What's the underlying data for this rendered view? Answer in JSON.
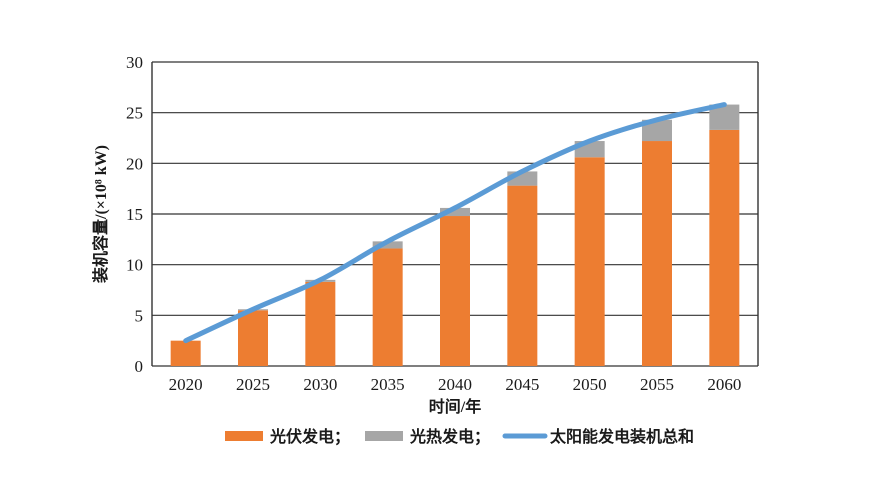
{
  "chart_data": {
    "type": "bar",
    "stacked": true,
    "title": "",
    "xlabel": "时间/年",
    "ylabel": "装机容量/(×10⁸ kW)",
    "categories": [
      "2020",
      "2025",
      "2030",
      "2035",
      "2040",
      "2045",
      "2050",
      "2055",
      "2060"
    ],
    "series": [
      {
        "name": "光伏发电",
        "type": "bar",
        "color": "#ED7D31",
        "values": [
          2.5,
          5.5,
          8.3,
          11.6,
          14.8,
          17.8,
          20.6,
          22.2,
          23.3
        ]
      },
      {
        "name": "光热发电",
        "type": "bar",
        "color": "#A6A6A6",
        "values": [
          0,
          0.1,
          0.2,
          0.7,
          0.8,
          1.4,
          1.6,
          2.1,
          2.5
        ]
      },
      {
        "name": "太阳能发电装机总和",
        "type": "line",
        "color": "#5B9BD5",
        "values": [
          2.5,
          5.6,
          8.5,
          12.3,
          15.6,
          19.2,
          22.2,
          24.3,
          25.8
        ]
      }
    ],
    "ylim": [
      0,
      30
    ],
    "ytick_step": 5,
    "y_ticks": [
      "0",
      "5",
      "10",
      "15",
      "20",
      "25",
      "30"
    ],
    "grid": true,
    "legend_position": "bottom"
  },
  "legend": {
    "items": [
      {
        "label": "光伏发电；",
        "color": "#ED7D31",
        "marker": "rect"
      },
      {
        "label": "光热发电；",
        "color": "#A6A6A6",
        "marker": "rect"
      },
      {
        "label": "太阳能发电装机总和",
        "color": "#5B9BD5",
        "marker": "line"
      }
    ]
  },
  "colors": {
    "axis": "#333333",
    "text": "#1a1a1a",
    "background": "#ffffff"
  }
}
